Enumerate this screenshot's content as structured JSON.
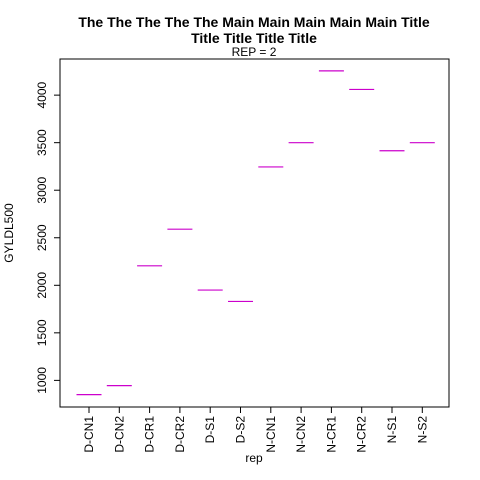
{
  "chart_data": {
    "type": "scatter",
    "marker": "horizontal-dash",
    "title_line1": "The The The The The Main Main Main Main Main Title",
    "title_line2": "Title Title Title Title",
    "subtitle": "REP = 2",
    "xlabel": "rep",
    "ylabel": "GYLDL500",
    "categories": [
      "D-CN1",
      "D-CN2",
      "D-CR1",
      "D-CR2",
      "D-S1",
      "D-S2",
      "N-CN1",
      "N-CN2",
      "N-CR1",
      "N-CR2",
      "N-S1",
      "N-S2"
    ],
    "values": [
      850,
      945,
      2205,
      2590,
      1950,
      1830,
      3245,
      3500,
      4255,
      4060,
      3415,
      3500
    ],
    "yticks": [
      1000,
      1500,
      2000,
      2500,
      3000,
      3500,
      4000
    ],
    "ylim": [
      720,
      4380
    ],
    "color": "#cc00cc",
    "grid": false
  }
}
